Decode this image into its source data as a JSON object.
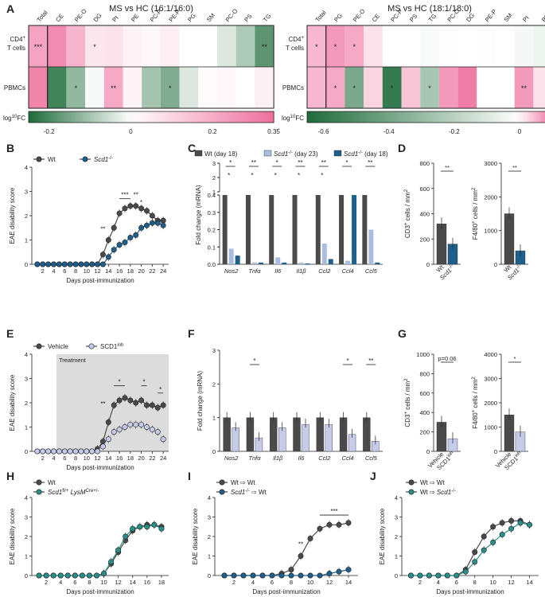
{
  "panel_letters": [
    "A",
    "B",
    "C",
    "D",
    "E",
    "F",
    "G",
    "H",
    "I",
    "J"
  ],
  "colors": {
    "wt": "#4a4a4a",
    "ko": "#1f5f8b",
    "ko_light": "#a9bde0",
    "vehicle": "#4a4a4a",
    "inh": "#c6cbea",
    "green": "#1e6b3a",
    "pink": "#ee6f9c",
    "teal": "#2a8f88",
    "shade": "#dcdcdc"
  },
  "chart_data": [
    {
      "id": "A1",
      "type": "heatmap",
      "title": "MS vs HC (16:1/16:0)",
      "columns": [
        "Total",
        "CE",
        "PE-O",
        "DG",
        "PI",
        "PE",
        "PC-P",
        "PE-P",
        "PG",
        "SM",
        "PC-O",
        "PS",
        "TG"
      ],
      "rows": [
        "CD4+ T cells",
        "PBMCs"
      ],
      "row_labels": [
        "CD4",
        "+",
        "T cells",
        "PBMCs"
      ],
      "values": [
        [
          0.22,
          0.28,
          0.18,
          0.06,
          0.07,
          0.03,
          0.02,
          0.04,
          0.0,
          0.0,
          -0.04,
          -0.09,
          -0.18
        ],
        [
          0.3,
          -0.21,
          -0.12,
          -0.01,
          0.21,
          0.03,
          -0.1,
          -0.14,
          -0.04,
          0.01,
          0.02,
          0.0,
          0.04
        ]
      ],
      "stars": [
        [
          "***",
          "",
          "",
          "*",
          "",
          "",
          "",
          "",
          "",
          "",
          "",
          "",
          "**"
        ],
        [
          "",
          "",
          "*",
          "",
          "**",
          "",
          "",
          "*",
          "",
          "",
          "",
          "",
          ""
        ]
      ],
      "colorbar": {
        "min": -0.25,
        "max": 0.35,
        "ticks": [
          "-0.2",
          "0",
          "0.2",
          "0.35"
        ],
        "label": "log",
        "label_sup": "10",
        "label_end": "FC"
      }
    },
    {
      "id": "A2",
      "type": "heatmap",
      "title": "MS vs HC (18:1/18:0)",
      "columns": [
        "Total",
        "PG",
        "PE-O",
        "CE",
        "PC-P",
        "PS",
        "TG",
        "PC-O",
        "DG",
        "PE-P",
        "SM",
        "PI",
        "PE"
      ],
      "rows": [
        "CD4+ T cells",
        "PBMCs"
      ],
      "row_labels": [
        "CD4",
        "+",
        "T cells",
        "PBMCs"
      ],
      "values": [
        [
          0.05,
          0.07,
          0.06,
          0.02,
          0.0,
          0.0,
          -0.02,
          -0.01,
          0.0,
          -0.01,
          0.0,
          -0.03,
          -0.05
        ],
        [
          0.05,
          0.06,
          -0.38,
          0.03,
          -0.58,
          0.04,
          -0.25,
          0.07,
          0.09,
          0.0,
          0.0,
          0.07,
          0.02
        ]
      ],
      "stars": [
        [
          "*",
          "*",
          "*",
          "",
          "",
          "",
          "",
          "",
          "",
          "",
          "",
          "",
          ""
        ],
        [
          "",
          "*",
          "*",
          "",
          "*",
          "",
          "*",
          "",
          "",
          "",
          "",
          "**",
          ""
        ]
      ],
      "colorbar": {
        "min": -0.65,
        "max": 0.1,
        "ticks": [
          "-0.6",
          "-0.4",
          "-0.2",
          "0",
          "0.1"
        ],
        "label": "log",
        "label_sup": "10",
        "label_end": "FC"
      }
    },
    {
      "id": "B",
      "type": "line",
      "xlabel": "Days post-immunization",
      "ylabel": "EAE disability score",
      "xlim": [
        0,
        25
      ],
      "ylim": [
        0,
        4
      ],
      "xticks": [
        "2",
        "4",
        "6",
        "8",
        "10",
        "12",
        "14",
        "16",
        "18",
        "20",
        "22",
        "24"
      ],
      "yticks": [
        "0",
        "1",
        "2",
        "3",
        "4"
      ],
      "legend": [
        "Wt",
        "Scd1"
      ],
      "legend_sup": "-/-",
      "series": [
        {
          "name": "Wt",
          "x": [
            1,
            2,
            3,
            4,
            5,
            6,
            7,
            8,
            9,
            10,
            11,
            12,
            13,
            14,
            15,
            16,
            17,
            18,
            19,
            20,
            21,
            22,
            23,
            24
          ],
          "y": [
            0,
            0,
            0,
            0,
            0,
            0,
            0,
            0,
            0,
            0,
            0,
            0,
            0.4,
            1.0,
            1.5,
            2.1,
            2.3,
            2.4,
            2.4,
            2.3,
            2.2,
            2.0,
            1.8,
            1.8
          ]
        },
        {
          "name": "Scd1-/-",
          "x": [
            1,
            2,
            3,
            4,
            5,
            6,
            7,
            8,
            9,
            10,
            11,
            12,
            13,
            14,
            15,
            16,
            17,
            18,
            19,
            20,
            21,
            22,
            23,
            24
          ],
          "y": [
            0,
            0,
            0,
            0,
            0,
            0,
            0,
            0,
            0,
            0,
            0,
            0,
            0,
            0.3,
            0.6,
            0.8,
            0.9,
            1.1,
            1.2,
            1.5,
            1.6,
            1.7,
            1.7,
            1.6
          ]
        }
      ],
      "sig": [
        {
          "x1": 13,
          "x2": 13,
          "label": "**",
          "y": 1.3
        },
        {
          "x1": 16,
          "x2": 18,
          "label": "***",
          "y": 2.7
        },
        {
          "x1": 19,
          "x2": 19,
          "label": "**",
          "y": 2.7
        },
        {
          "x1": 20,
          "x2": 20,
          "label": "*",
          "y": 2.4
        }
      ]
    },
    {
      "id": "C",
      "type": "bar",
      "ylabel": "Fold change (mRNA)",
      "categories": [
        "Nos2",
        "Tnfα",
        "Il6",
        "Il1β",
        "Ccl2",
        "Ccl4",
        "Ccl5"
      ],
      "legend": [
        "Wt (day 18)",
        "Scd1",
        "(day 23)",
        "Scd1",
        "(day 18)"
      ],
      "legend_sup": "-/-",
      "series": [
        {
          "name": "Wt (day 18)",
          "values": [
            1.0,
            1.0,
            1.0,
            1.0,
            1.0,
            1.0,
            1.0
          ]
        },
        {
          "name": "Scd1-/- (day 23)",
          "values": [
            0.09,
            0.01,
            0.04,
            0.01,
            0.12,
            0.02,
            0.2
          ]
        },
        {
          "name": "Scd1-/- (day 18)",
          "values": [
            0.05,
            0.01,
            0.01,
            0.005,
            0.03,
            1.0,
            0.01
          ]
        }
      ],
      "broken_axis": {
        "lower": [
          0,
          0.4
        ],
        "upper": [
          1,
          3
        ]
      },
      "yticks_lower": [
        "0.0",
        "0.1",
        "0.2",
        "0.3",
        "0.4"
      ],
      "yticks_upper": [
        "1",
        "2",
        "3"
      ],
      "sig": [
        "*",
        "**",
        "*",
        "**",
        "**",
        "*",
        "**"
      ],
      "sig2": [
        "*",
        "*",
        "*",
        "*",
        "*",
        "",
        ""
      ]
    },
    {
      "id": "D",
      "type": "bar",
      "panels": [
        {
          "ylabel": "CD3",
          "ylabel_sup": "+",
          "ylabel_end": " cells / mm",
          "ylabel_sup2": "2",
          "categories": [
            "Wt",
            "Scd1"
          ],
          "cat_sup": "-/-",
          "values": [
            320,
            160
          ],
          "ylim": [
            0,
            800
          ],
          "yticks": [
            "0",
            "200",
            "400",
            "600",
            "800"
          ],
          "sig": "**"
        },
        {
          "ylabel": "F4/80",
          "ylabel_sup": "+",
          "ylabel_end": " cells / mm",
          "ylabel_sup2": "2",
          "categories": [
            "Wt",
            "Scd1"
          ],
          "cat_sup": "-/-",
          "values": [
            1500,
            400
          ],
          "ylim": [
            0,
            3000
          ],
          "yticks": [
            "0",
            "1000",
            "2000",
            "3000"
          ],
          "sig": "**"
        }
      ]
    },
    {
      "id": "E",
      "type": "line",
      "xlabel": "Days post-immunization",
      "ylabel": "EAE disability score",
      "xlim": [
        0,
        25
      ],
      "ylim": [
        0,
        4
      ],
      "xticks": [
        "2",
        "4",
        "6",
        "8",
        "10",
        "12",
        "14",
        "16",
        "18",
        "20",
        "22",
        "24"
      ],
      "yticks": [
        "0",
        "1",
        "2",
        "3",
        "4"
      ],
      "legend": [
        "Vehicle",
        "SCD1"
      ],
      "legend_sup": "inh",
      "shade_label": "Treatment",
      "shade_range": [
        4.5,
        25
      ],
      "series": [
        {
          "name": "Vehicle",
          "x": [
            1,
            2,
            3,
            4,
            5,
            6,
            7,
            8,
            9,
            10,
            11,
            12,
            13,
            14,
            15,
            16,
            17,
            18,
            19,
            20,
            21,
            22,
            23,
            24
          ],
          "y": [
            0,
            0,
            0,
            0,
            0,
            0,
            0,
            0,
            0,
            0,
            0,
            0.1,
            0.4,
            1.2,
            1.9,
            2.1,
            2.2,
            2.1,
            2.0,
            2.1,
            1.9,
            1.9,
            1.8,
            1.9
          ]
        },
        {
          "name": "SCD1inh",
          "x": [
            1,
            2,
            3,
            4,
            5,
            6,
            7,
            8,
            9,
            10,
            11,
            12,
            13,
            14,
            15,
            16,
            17,
            18,
            19,
            20,
            21,
            22,
            23,
            24
          ],
          "y": [
            0,
            0,
            0,
            0,
            0,
            0,
            0,
            0,
            0,
            0,
            0,
            0,
            0.2,
            0.5,
            0.8,
            0.9,
            1.0,
            1.1,
            1.1,
            1.1,
            1.0,
            0.9,
            0.8,
            0.5
          ]
        }
      ],
      "sig": [
        {
          "x1": 13,
          "x2": 13,
          "label": "**",
          "y": 1.8
        },
        {
          "x1": 15,
          "x2": 17,
          "label": "*",
          "y": 2.7
        },
        {
          "x1": 20,
          "x2": 21,
          "label": "*",
          "y": 2.7
        },
        {
          "x1": 23,
          "x2": 24,
          "label": "*",
          "y": 2.4
        }
      ]
    },
    {
      "id": "F",
      "type": "bar",
      "ylabel": "Fold change (mRNA)",
      "categories": [
        "Nos2",
        "Tnfα",
        "Il1β",
        "Il6",
        "Ccl2",
        "Ccl4",
        "Ccl5"
      ],
      "ylim": [
        0,
        3
      ],
      "yticks": [
        "0",
        "1",
        "2",
        "3"
      ],
      "series": [
        {
          "name": "Vehicle",
          "values": [
            1.0,
            1.0,
            1.0,
            1.0,
            1.0,
            1.0,
            1.0
          ]
        },
        {
          "name": "SCD1inh",
          "values": [
            0.7,
            0.4,
            0.7,
            0.8,
            0.8,
            0.5,
            0.3
          ]
        }
      ],
      "sig": [
        "",
        "*",
        "",
        "",
        "",
        "*",
        "**"
      ]
    },
    {
      "id": "G",
      "type": "bar",
      "panels": [
        {
          "ylabel": "CD3",
          "ylabel_sup": "+",
          "ylabel_end": " cells / mm",
          "ylabel_sup2": "2",
          "categories": [
            "Vehicle",
            "SCD1"
          ],
          "cat_sup": "inh",
          "values": [
            300,
            130
          ],
          "ylim": [
            0,
            1000
          ],
          "yticks": [
            "0",
            "200",
            "400",
            "600",
            "800",
            "1000"
          ],
          "sig": "p=0.06"
        },
        {
          "ylabel": "F4/80",
          "ylabel_sup": "+",
          "ylabel_end": " cells / mm",
          "ylabel_sup2": "2",
          "categories": [
            "Vehicle",
            "SCD1"
          ],
          "cat_sup": "inh",
          "values": [
            1500,
            800
          ],
          "ylim": [
            0,
            4000
          ],
          "yticks": [
            "0",
            "1000",
            "2000",
            "3000",
            "4000"
          ],
          "sig": "*"
        }
      ]
    },
    {
      "id": "H",
      "type": "line",
      "xlabel": "Days post-immunization",
      "ylabel": "EAE disability score",
      "xlim": [
        0,
        19
      ],
      "ylim": [
        0,
        4
      ],
      "xticks": [
        "2",
        "4",
        "6",
        "8",
        "10",
        "12",
        "14",
        "16",
        "18"
      ],
      "yticks": [
        "0",
        "1",
        "2",
        "3",
        "4"
      ],
      "legend": [
        "Wt",
        "Scd1",
        " LysM"
      ],
      "legend_sups": [
        "fl/+",
        "Cre+/-"
      ],
      "series": [
        {
          "name": "Wt",
          "x": [
            1,
            2,
            3,
            4,
            5,
            6,
            7,
            8,
            9,
            10,
            11,
            12,
            13,
            14,
            15,
            16,
            17,
            18
          ],
          "y": [
            0,
            0,
            0,
            0,
            0,
            0,
            0,
            0,
            0,
            0.1,
            0.6,
            1.2,
            1.8,
            2.3,
            2.5,
            2.6,
            2.6,
            2.5
          ]
        },
        {
          "name": "Scd1fl/+ LysMCre+/-",
          "x": [
            1,
            2,
            3,
            4,
            5,
            6,
            7,
            8,
            9,
            10,
            11,
            12,
            13,
            14,
            15,
            16,
            17,
            18
          ],
          "y": [
            0,
            0,
            0,
            0,
            0,
            0,
            0,
            0,
            0,
            0.1,
            0.7,
            1.3,
            2.0,
            2.4,
            2.5,
            2.5,
            2.6,
            2.4
          ]
        }
      ]
    },
    {
      "id": "I",
      "type": "line",
      "xlabel": "Days post-immunization",
      "ylabel": "EAE disability score",
      "xlim": [
        0,
        15
      ],
      "ylim": [
        0,
        4
      ],
      "xticks": [
        "2",
        "4",
        "6",
        "8",
        "10",
        "12",
        "14"
      ],
      "yticks": [
        "0",
        "1",
        "2",
        "3",
        "4"
      ],
      "legend": [
        "Wt ⇨ Wt",
        "Scd1",
        " ⇨ Wt"
      ],
      "legend_sup": "-/-",
      "series": [
        {
          "name": "Wt -> Wt",
          "x": [
            1,
            2,
            3,
            4,
            5,
            6,
            7,
            8,
            9,
            10,
            11,
            12,
            13,
            14
          ],
          "y": [
            0,
            0,
            0,
            0,
            0,
            0,
            0.1,
            0.3,
            1.0,
            1.9,
            2.4,
            2.6,
            2.6,
            2.7
          ]
        },
        {
          "name": "Scd1-/- -> Wt",
          "x": [
            1,
            2,
            3,
            4,
            5,
            6,
            7,
            8,
            9,
            10,
            11,
            12,
            13,
            14
          ],
          "y": [
            0,
            0,
            0,
            0,
            0,
            0,
            0,
            0,
            0,
            0,
            0,
            0.1,
            0.2,
            0.3
          ]
        }
      ],
      "sig": [
        {
          "x1": 9,
          "x2": 9,
          "label": "**",
          "y": 1.4
        },
        {
          "x1": 11,
          "x2": 14,
          "label": "***",
          "y": 3.1
        }
      ]
    },
    {
      "id": "J",
      "type": "line",
      "xlabel": "Days post-immunization",
      "ylabel": "EAE disability score",
      "xlim": [
        0,
        15
      ],
      "ylim": [
        0,
        4
      ],
      "xticks": [
        "2",
        "4",
        "6",
        "8",
        "10",
        "12",
        "14"
      ],
      "yticks": [
        "0",
        "1",
        "2",
        "3",
        "4"
      ],
      "legend": [
        "Wt ⇨ Wt",
        "Wt ⇨ ",
        "Scd1"
      ],
      "legend_sup": "-/-",
      "series": [
        {
          "name": "Wt -> Wt",
          "x": [
            1,
            2,
            3,
            4,
            5,
            6,
            7,
            8,
            9,
            10,
            11,
            12,
            13,
            14
          ],
          "y": [
            0,
            0,
            0,
            0,
            0,
            0,
            0.3,
            1.2,
            2.0,
            2.5,
            2.7,
            2.8,
            2.8,
            2.6
          ]
        },
        {
          "name": "Wt -> Scd1-/-",
          "x": [
            1,
            2,
            3,
            4,
            5,
            6,
            7,
            8,
            9,
            10,
            11,
            12,
            13,
            14
          ],
          "y": [
            0,
            0,
            0,
            0,
            0,
            0,
            0.2,
            0.7,
            1.3,
            1.7,
            2.1,
            2.4,
            2.7,
            2.6
          ]
        }
      ]
    }
  ]
}
